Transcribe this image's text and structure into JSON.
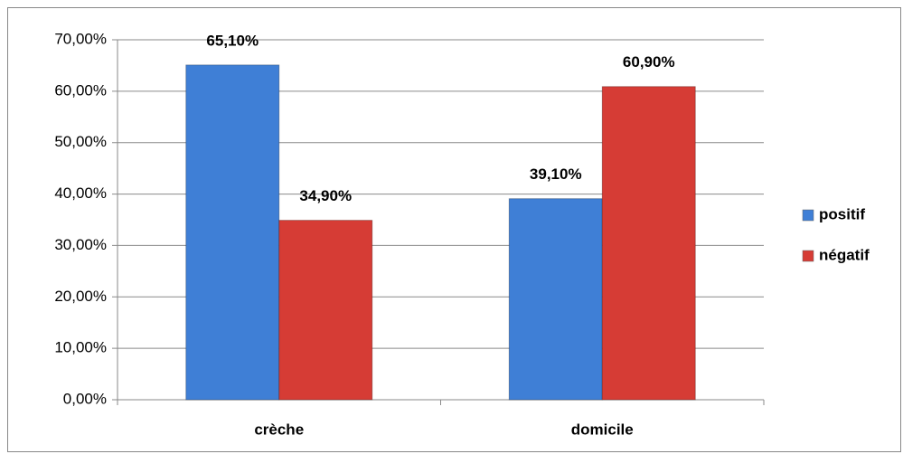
{
  "chart_data": {
    "type": "bar",
    "categories": [
      "crèche",
      "domicile"
    ],
    "series": [
      {
        "name": "positif",
        "color": "#3f7fd6",
        "values": [
          65.1,
          39.1
        ],
        "value_labels": [
          "65,10%",
          "39,10%"
        ]
      },
      {
        "name": "négatif",
        "color": "#d63c35",
        "values": [
          34.9,
          60.9
        ],
        "value_labels": [
          "34,90%",
          "60,90%"
        ]
      }
    ],
    "ylim": [
      0,
      70
    ],
    "yticks": [
      {
        "value": 0,
        "label": "0,00%"
      },
      {
        "value": 10,
        "label": "10,00%"
      },
      {
        "value": 20,
        "label": "20,00%"
      },
      {
        "value": 30,
        "label": "30,00%"
      },
      {
        "value": 40,
        "label": "40,00%"
      },
      {
        "value": 50,
        "label": "50,00%"
      },
      {
        "value": 60,
        "label": "60,00%"
      },
      {
        "value": 70,
        "label": "70,00%"
      }
    ],
    "grid": true,
    "legend": "right"
  }
}
